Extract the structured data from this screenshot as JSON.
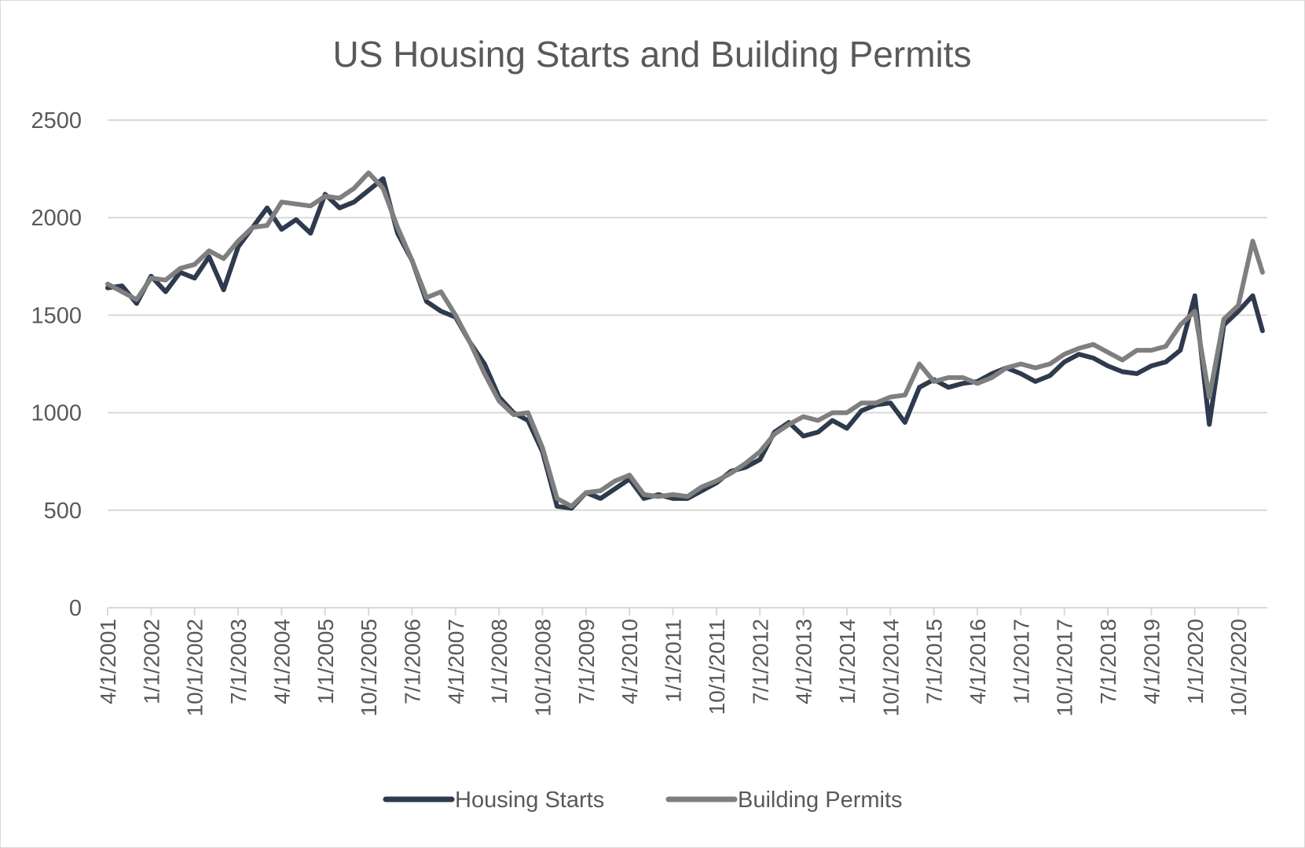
{
  "chart_data": {
    "type": "line",
    "title": "US Housing Starts and Building Permits",
    "xlabel": "",
    "ylabel": "",
    "ylim": [
      0,
      2500
    ],
    "yticks": [
      0,
      500,
      1000,
      1500,
      2000,
      2500
    ],
    "xticks": [
      "4/1/2001",
      "1/1/2002",
      "10/1/2002",
      "7/1/2003",
      "4/1/2004",
      "1/1/2005",
      "10/1/2005",
      "7/1/2006",
      "4/1/2007",
      "1/1/2008",
      "10/1/2008",
      "7/1/2009",
      "4/1/2010",
      "1/1/2011",
      "10/1/2011",
      "7/1/2012",
      "4/1/2013",
      "1/1/2014",
      "10/1/2014",
      "7/1/2015",
      "4/1/2016",
      "1/1/2017",
      "10/1/2017",
      "7/1/2018",
      "4/1/2019",
      "1/1/2020",
      "10/1/2020"
    ],
    "grid": true,
    "legend": "bottom",
    "series": [
      {
        "name": "Housing Starts",
        "color": "#2e3a4e",
        "points": [
          [
            "4/1/2001",
            1640
          ],
          [
            "7/1/2001",
            1650
          ],
          [
            "10/1/2001",
            1560
          ],
          [
            "1/1/2002",
            1700
          ],
          [
            "4/1/2002",
            1620
          ],
          [
            "7/1/2002",
            1720
          ],
          [
            "10/1/2002",
            1690
          ],
          [
            "1/1/2003",
            1800
          ],
          [
            "4/1/2003",
            1630
          ],
          [
            "7/1/2003",
            1850
          ],
          [
            "10/1/2003",
            1950
          ],
          [
            "1/1/2004",
            2050
          ],
          [
            "4/1/2004",
            1940
          ],
          [
            "7/1/2004",
            1990
          ],
          [
            "10/1/2004",
            1920
          ],
          [
            "1/1/2005",
            2120
          ],
          [
            "4/1/2005",
            2050
          ],
          [
            "7/1/2005",
            2080
          ],
          [
            "10/1/2005",
            2140
          ],
          [
            "1/1/2006",
            2200
          ],
          [
            "4/1/2006",
            1920
          ],
          [
            "7/1/2006",
            1780
          ],
          [
            "10/1/2006",
            1570
          ],
          [
            "1/1/2007",
            1520
          ],
          [
            "4/1/2007",
            1490
          ],
          [
            "7/1/2007",
            1360
          ],
          [
            "10/1/2007",
            1250
          ],
          [
            "1/1/2008",
            1080
          ],
          [
            "4/1/2008",
            1000
          ],
          [
            "7/1/2008",
            960
          ],
          [
            "10/1/2008",
            800
          ],
          [
            "1/1/2009",
            520
          ],
          [
            "4/1/2009",
            510
          ],
          [
            "7/1/2009",
            590
          ],
          [
            "10/1/2009",
            560
          ],
          [
            "1/1/2010",
            610
          ],
          [
            "4/1/2010",
            660
          ],
          [
            "7/1/2010",
            560
          ],
          [
            "10/1/2010",
            580
          ],
          [
            "1/1/2011",
            560
          ],
          [
            "4/1/2011",
            560
          ],
          [
            "7/1/2011",
            600
          ],
          [
            "10/1/2011",
            640
          ],
          [
            "1/1/2012",
            700
          ],
          [
            "4/1/2012",
            720
          ],
          [
            "7/1/2012",
            760
          ],
          [
            "10/1/2012",
            900
          ],
          [
            "1/1/2013",
            950
          ],
          [
            "4/1/2013",
            880
          ],
          [
            "7/1/2013",
            900
          ],
          [
            "10/1/2013",
            960
          ],
          [
            "1/1/2014",
            920
          ],
          [
            "4/1/2014",
            1010
          ],
          [
            "7/1/2014",
            1040
          ],
          [
            "10/1/2014",
            1050
          ],
          [
            "1/1/2015",
            950
          ],
          [
            "4/1/2015",
            1130
          ],
          [
            "7/1/2015",
            1170
          ],
          [
            "10/1/2015",
            1130
          ],
          [
            "1/1/2016",
            1150
          ],
          [
            "4/1/2016",
            1160
          ],
          [
            "7/1/2016",
            1200
          ],
          [
            "10/1/2016",
            1230
          ],
          [
            "1/1/2017",
            1200
          ],
          [
            "4/1/2017",
            1160
          ],
          [
            "7/1/2017",
            1190
          ],
          [
            "10/1/2017",
            1260
          ],
          [
            "1/1/2018",
            1300
          ],
          [
            "4/1/2018",
            1280
          ],
          [
            "7/1/2018",
            1240
          ],
          [
            "10/1/2018",
            1210
          ],
          [
            "1/1/2019",
            1200
          ],
          [
            "4/1/2019",
            1240
          ],
          [
            "7/1/2019",
            1260
          ],
          [
            "10/1/2019",
            1320
          ],
          [
            "1/1/2020",
            1600
          ],
          [
            "4/1/2020",
            940
          ],
          [
            "7/1/2020",
            1450
          ],
          [
            "10/1/2020",
            1520
          ],
          [
            "1/1/2021",
            1600
          ],
          [
            "3/1/2021",
            1420
          ]
        ]
      },
      {
        "name": "Building Permits",
        "color": "#7f7f7f",
        "points": [
          [
            "4/1/2001",
            1660
          ],
          [
            "7/1/2001",
            1620
          ],
          [
            "10/1/2001",
            1580
          ],
          [
            "1/1/2002",
            1690
          ],
          [
            "4/1/2002",
            1680
          ],
          [
            "7/1/2002",
            1740
          ],
          [
            "10/1/2002",
            1760
          ],
          [
            "1/1/2003",
            1830
          ],
          [
            "4/1/2003",
            1790
          ],
          [
            "7/1/2003",
            1880
          ],
          [
            "10/1/2003",
            1950
          ],
          [
            "1/1/2004",
            1960
          ],
          [
            "4/1/2004",
            2080
          ],
          [
            "7/1/2004",
            2070
          ],
          [
            "10/1/2004",
            2060
          ],
          [
            "1/1/2005",
            2110
          ],
          [
            "4/1/2005",
            2100
          ],
          [
            "7/1/2005",
            2150
          ],
          [
            "10/1/2005",
            2230
          ],
          [
            "1/1/2006",
            2150
          ],
          [
            "4/1/2006",
            1950
          ],
          [
            "7/1/2006",
            1780
          ],
          [
            "10/1/2006",
            1590
          ],
          [
            "1/1/2007",
            1620
          ],
          [
            "4/1/2007",
            1500
          ],
          [
            "7/1/2007",
            1360
          ],
          [
            "10/1/2007",
            1200
          ],
          [
            "1/1/2008",
            1060
          ],
          [
            "4/1/2008",
            990
          ],
          [
            "7/1/2008",
            1000
          ],
          [
            "10/1/2008",
            820
          ],
          [
            "1/1/2009",
            560
          ],
          [
            "4/1/2009",
            520
          ],
          [
            "7/1/2009",
            590
          ],
          [
            "10/1/2009",
            600
          ],
          [
            "1/1/2010",
            650
          ],
          [
            "4/1/2010",
            680
          ],
          [
            "7/1/2010",
            580
          ],
          [
            "10/1/2010",
            570
          ],
          [
            "1/1/2011",
            580
          ],
          [
            "4/1/2011",
            570
          ],
          [
            "7/1/2011",
            620
          ],
          [
            "10/1/2011",
            650
          ],
          [
            "1/1/2012",
            690
          ],
          [
            "4/1/2012",
            740
          ],
          [
            "7/1/2012",
            800
          ],
          [
            "10/1/2012",
            890
          ],
          [
            "1/1/2013",
            940
          ],
          [
            "4/1/2013",
            980
          ],
          [
            "7/1/2013",
            960
          ],
          [
            "10/1/2013",
            1000
          ],
          [
            "1/1/2014",
            1000
          ],
          [
            "4/1/2014",
            1050
          ],
          [
            "7/1/2014",
            1050
          ],
          [
            "10/1/2014",
            1080
          ],
          [
            "1/1/2015",
            1090
          ],
          [
            "4/1/2015",
            1250
          ],
          [
            "7/1/2015",
            1160
          ],
          [
            "10/1/2015",
            1180
          ],
          [
            "1/1/2016",
            1180
          ],
          [
            "4/1/2016",
            1150
          ],
          [
            "7/1/2016",
            1180
          ],
          [
            "10/1/2016",
            1230
          ],
          [
            "1/1/2017",
            1250
          ],
          [
            "4/1/2017",
            1230
          ],
          [
            "7/1/2017",
            1250
          ],
          [
            "10/1/2017",
            1300
          ],
          [
            "1/1/2018",
            1330
          ],
          [
            "4/1/2018",
            1350
          ],
          [
            "7/1/2018",
            1310
          ],
          [
            "10/1/2018",
            1270
          ],
          [
            "1/1/2019",
            1320
          ],
          [
            "4/1/2019",
            1320
          ],
          [
            "7/1/2019",
            1340
          ],
          [
            "10/1/2019",
            1450
          ],
          [
            "1/1/2020",
            1520
          ],
          [
            "4/1/2020",
            1080
          ],
          [
            "7/1/2020",
            1480
          ],
          [
            "10/1/2020",
            1550
          ],
          [
            "1/1/2021",
            1880
          ],
          [
            "3/1/2021",
            1720
          ]
        ]
      }
    ]
  }
}
